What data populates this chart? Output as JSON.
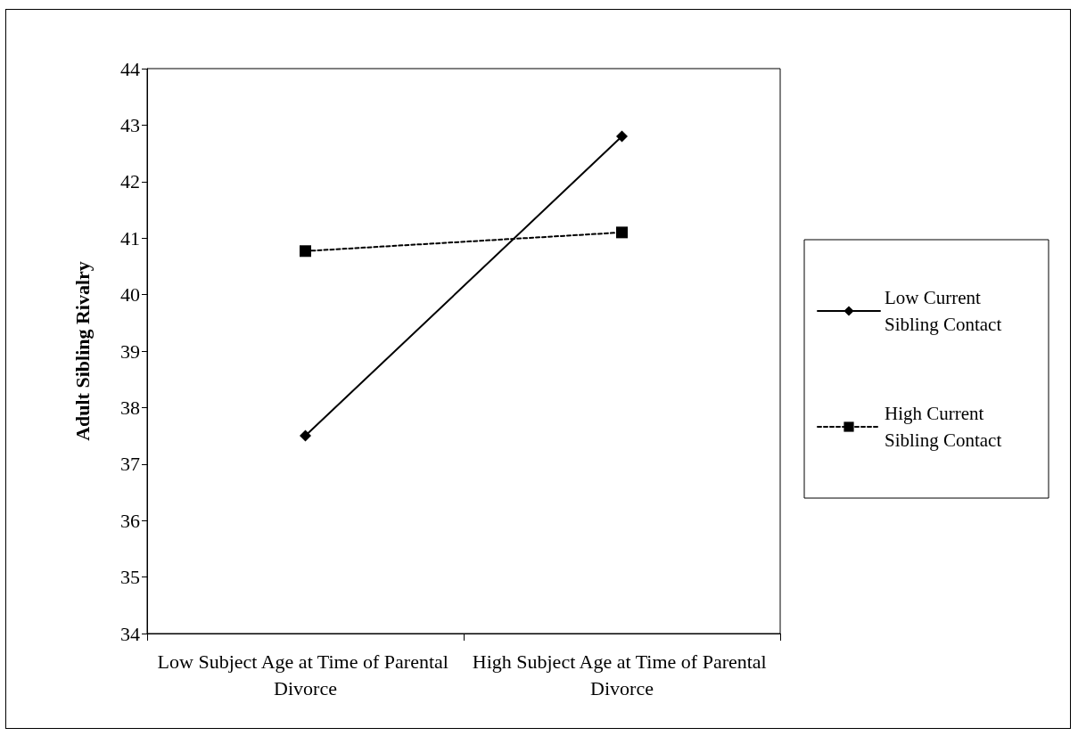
{
  "chart_data": {
    "type": "line",
    "ylabel": "Adult Sibling Rivalry",
    "categories": [
      "Low Subject Age at Time of Parental Divorce",
      "High Subject Age at Time of Parental Divorce"
    ],
    "series": [
      {
        "name": "Low Current Sibling Contact",
        "color": "#000000",
        "values": [
          37.5,
          42.8
        ],
        "marker": "diamond",
        "line_style": "solid"
      },
      {
        "name": "High Current Sibling Contact",
        "color": "#000000",
        "values": [
          40.77,
          41.1
        ],
        "marker": "square",
        "line_style": "dashed"
      }
    ],
    "ylim": [
      34,
      44
    ],
    "yticks": [
      34,
      35,
      36,
      37,
      38,
      39,
      40,
      41,
      42,
      43,
      44
    ],
    "grid": false,
    "legend": "right"
  }
}
